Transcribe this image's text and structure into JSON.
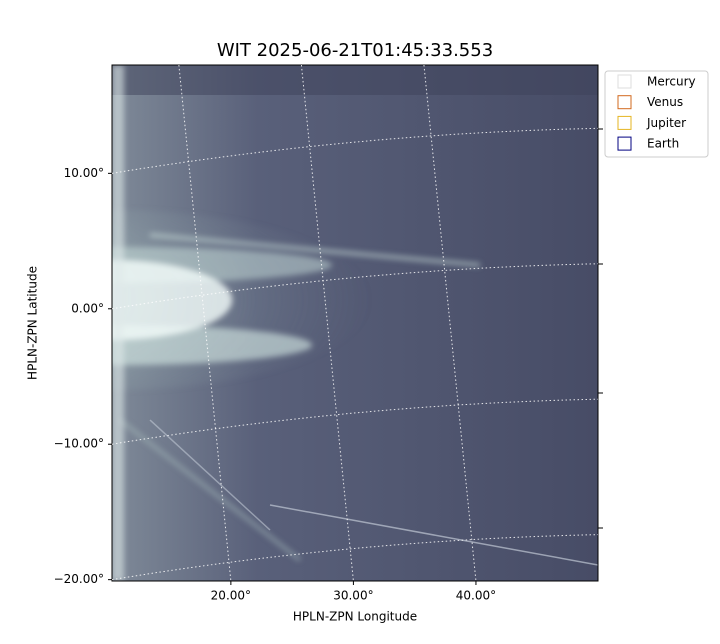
{
  "chart_data": {
    "type": "image",
    "title": "WIT 2025-06-21T01:45:33.553",
    "xlabel": "HPLN-ZPN Longitude",
    "ylabel": "HPLN-ZPN Latitude",
    "xlim": [
      10.3,
      49.96
    ],
    "ylim": [
      -20.1,
      18.0
    ],
    "xticks": [
      {
        "value": 20,
        "label": "20.00°"
      },
      {
        "value": 30,
        "label": "30.00°"
      },
      {
        "value": 40,
        "label": "40.00°"
      }
    ],
    "yticks": [
      {
        "value": -20,
        "label": "−20.00°"
      },
      {
        "value": -10,
        "label": "−10.00°"
      },
      {
        "value": 0,
        "label": "0.00°"
      },
      {
        "value": 10,
        "label": "10.00°"
      }
    ],
    "grid": true,
    "legend_position": "outside upper right",
    "series": [
      {
        "name": "Mercury",
        "color": "#dddddd"
      },
      {
        "name": "Venus",
        "color": "#d2691e"
      },
      {
        "name": "Jupiter",
        "color": "#e6b422"
      },
      {
        "name": "Earth",
        "color": "#000080"
      }
    ]
  }
}
